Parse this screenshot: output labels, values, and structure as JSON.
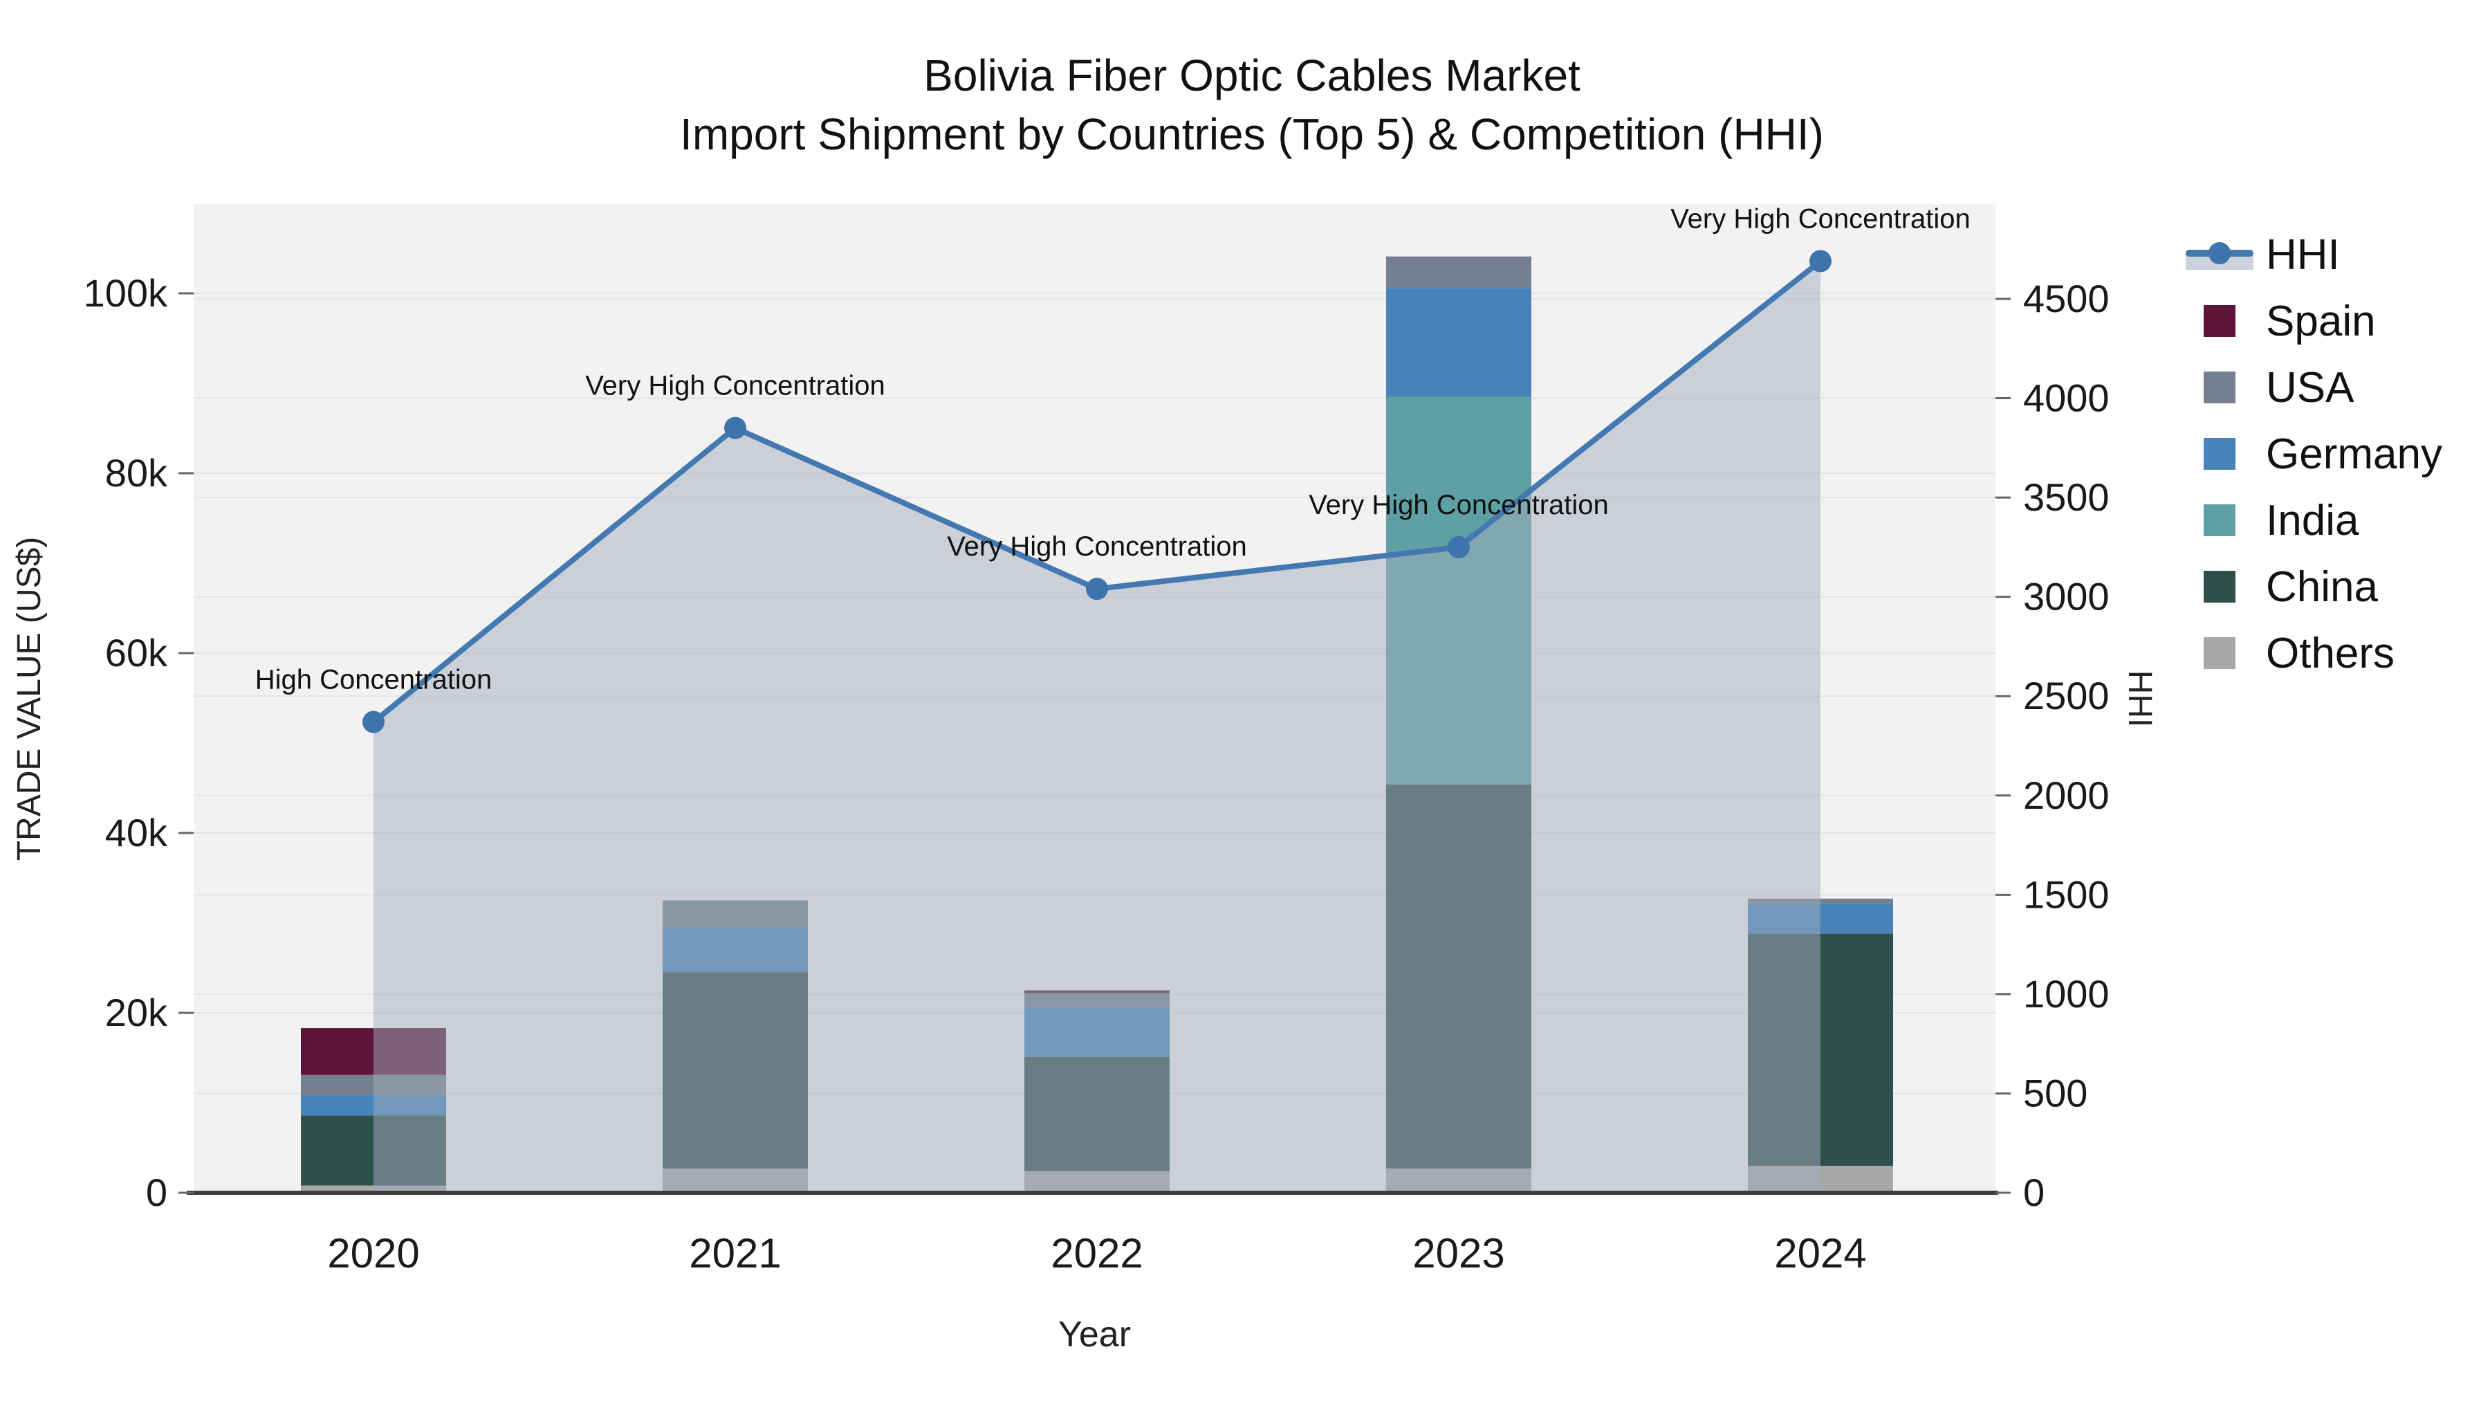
{
  "title": {
    "line1": "Bolivia Fiber Optic Cables Market",
    "line2": "Import Shipment by Countries (Top 5) & Competition (HHI)"
  },
  "colors": {
    "hhi_line": "#4379b0",
    "hhi_marker": "#3d74ac",
    "hhi_fill": "rgba(163,173,190,0.5)",
    "spain": "#5d1438",
    "usa": "#74808f",
    "germany": "#4583b8",
    "india": "#5fa0a4",
    "china": "#2f4f4b",
    "others": "#a8a8a8",
    "plot_bg": "#f2f2f3",
    "grid": "#e3e3e6",
    "axis_line": "#3e3e3e",
    "text": "#1a1a1a"
  },
  "legend": {
    "items": [
      {
        "key": "hhi",
        "label": "HHI",
        "type": "line"
      },
      {
        "key": "spain",
        "label": "Spain",
        "type": "swatch"
      },
      {
        "key": "usa",
        "label": "USA",
        "type": "swatch"
      },
      {
        "key": "germany",
        "label": "Germany",
        "type": "swatch"
      },
      {
        "key": "india",
        "label": "India",
        "type": "swatch"
      },
      {
        "key": "china",
        "label": "China",
        "type": "swatch"
      },
      {
        "key": "others",
        "label": "Others",
        "type": "swatch"
      }
    ]
  },
  "chart_data": {
    "type": "bar+line",
    "categories": [
      "2020",
      "2021",
      "2022",
      "2023",
      "2024"
    ],
    "bar_stack_order_bottom_to_top": [
      "Others",
      "China",
      "India",
      "Germany",
      "USA",
      "Spain"
    ],
    "series": [
      {
        "name": "Spain",
        "color_key": "spain",
        "values": [
          5200,
          0,
          300,
          0,
          0
        ]
      },
      {
        "name": "USA",
        "color_key": "usa",
        "values": [
          2200,
          2900,
          1600,
          3500,
          600
        ]
      },
      {
        "name": "Germany",
        "color_key": "germany",
        "values": [
          2300,
          5100,
          5500,
          12100,
          3300
        ]
      },
      {
        "name": "India",
        "color_key": "india",
        "values": [
          0,
          0,
          0,
          43100,
          0
        ]
      },
      {
        "name": "China",
        "color_key": "china",
        "values": [
          7800,
          21800,
          12700,
          42700,
          25800
        ]
      },
      {
        "name": "Others",
        "color_key": "others",
        "values": [
          800,
          2700,
          2400,
          2700,
          3000
        ]
      }
    ],
    "totals": [
      18300,
      32500,
      22500,
      104100,
      32700
    ],
    "hhi_series": {
      "name": "HHI",
      "values": [
        2370,
        3850,
        3040,
        3250,
        4690
      ],
      "style": "line+markers+area"
    },
    "annotations": [
      {
        "year": "2020",
        "text": "High Concentration"
      },
      {
        "year": "2021",
        "text": "Very High Concentration"
      },
      {
        "year": "2022",
        "text": "Very High Concentration"
      },
      {
        "year": "2023",
        "text": "Very High Concentration"
      },
      {
        "year": "2024",
        "text": "Very High Concentration"
      }
    ],
    "left_axis": {
      "title": "TRADE VALUE (US$)",
      "tick_labels": [
        "0",
        "20k",
        "40k",
        "60k",
        "80k",
        "100k"
      ],
      "tick_values": [
        0,
        20000,
        40000,
        60000,
        80000,
        100000
      ],
      "range": [
        0,
        109900
      ]
    },
    "right_axis": {
      "title": "HHI",
      "tick_labels": [
        "0",
        "500",
        "1000",
        "1500",
        "2000",
        "2500",
        "3000",
        "3500",
        "4000",
        "4500"
      ],
      "tick_values": [
        0,
        500,
        1000,
        1500,
        2000,
        2500,
        3000,
        3500,
        4000,
        4500
      ],
      "range": [
        0,
        4500
      ]
    },
    "x_axis": {
      "title": "Year"
    },
    "grid": true,
    "legend_position": "right"
  }
}
